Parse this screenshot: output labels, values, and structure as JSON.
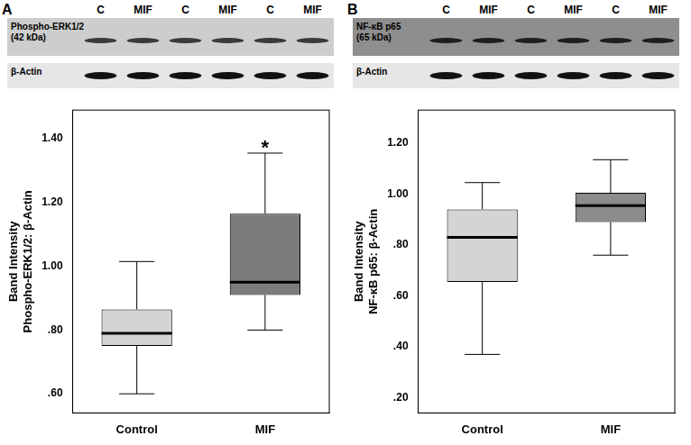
{
  "chart_data": [
    {
      "type": "box",
      "panel": "A",
      "blot": {
        "lanes": [
          "C",
          "MIF",
          "C",
          "MIF",
          "C",
          "MIF"
        ],
        "rows": [
          [
            "Phospho-ERK1/2",
            "(42 kDa)"
          ],
          [
            "β-Actin"
          ]
        ]
      },
      "y_label": [
        "Band Intensity",
        "Phospho-ERK1/2: β-Actin"
      ],
      "categories": [
        "Control",
        "MIF"
      ],
      "boxes": [
        {
          "min": 0.6,
          "q1": 0.75,
          "median": 0.79,
          "q3": 0.865,
          "max": 1.015
        },
        {
          "min": 0.8,
          "q1": 0.91,
          "median": 0.95,
          "q3": 1.165,
          "max": 1.355
        }
      ],
      "colors": [
        "#d4d4d4",
        "#7c7c7c"
      ],
      "ylim": [
        0.54,
        1.49
      ],
      "yticks": [
        {
          "value": 0.6,
          "label": ".60"
        },
        {
          "value": 0.8,
          "label": ".80"
        },
        {
          "value": 1.0,
          "label": "1.00"
        },
        {
          "value": 1.2,
          "label": "1.20"
        },
        {
          "value": 1.4,
          "label": "1.40"
        }
      ],
      "annotations": [
        {
          "text": "*",
          "category": "MIF"
        }
      ],
      "grid": false
    },
    {
      "type": "box",
      "panel": "B",
      "blot": {
        "lanes": [
          "C",
          "MIF",
          "C",
          "MIF",
          "C",
          "MIF"
        ],
        "rows": [
          [
            "NF-κB p65",
            "(65 kDa)"
          ],
          [
            "β-Actin"
          ]
        ]
      },
      "y_label": [
        "Band Intensity",
        "NF-κB p65: β-Actin"
      ],
      "categories": [
        "Control",
        "MIF"
      ],
      "boxes": [
        {
          "min": 0.37,
          "q1": 0.655,
          "median": 0.83,
          "q3": 0.94,
          "max": 1.045
        },
        {
          "min": 0.76,
          "q1": 0.89,
          "median": 0.955,
          "q3": 1.005,
          "max": 1.135
        }
      ],
      "colors": [
        "#d4d4d4",
        "#8c8c8c"
      ],
      "ylim": [
        0.14,
        1.33
      ],
      "yticks": [
        {
          "value": 0.2,
          "label": ".20"
        },
        {
          "value": 0.4,
          "label": ".40"
        },
        {
          "value": 0.6,
          "label": ".60"
        },
        {
          "value": 0.8,
          "label": ".80"
        },
        {
          "value": 1.0,
          "label": "1.00"
        },
        {
          "value": 1.2,
          "label": "1.20"
        }
      ],
      "grid": false
    }
  ]
}
